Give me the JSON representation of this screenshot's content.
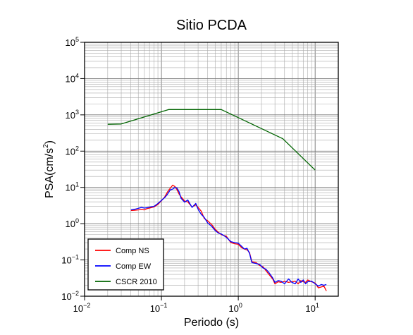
{
  "chart_data": {
    "type": "line",
    "title": "Sitio PCDA",
    "xlabel": "Periodo (s)",
    "ylabel": "PSA(cm/s",
    "ylabel_sup": "2",
    "ylabel_close": ")",
    "x_scale": "log",
    "y_scale": "log",
    "xlim": [
      0.01,
      20
    ],
    "ylim": [
      0.01,
      100000
    ],
    "grid": true,
    "legend_position": "bottom-left",
    "x_ticks": [
      {
        "base": "10",
        "exp": "−2"
      },
      {
        "base": "10",
        "exp": "−1"
      },
      {
        "base": "10",
        "exp": "0"
      },
      {
        "base": "10",
        "exp": "1"
      }
    ],
    "y_ticks": [
      {
        "base": "10",
        "exp": "−2"
      },
      {
        "base": "10",
        "exp": "−1"
      },
      {
        "base": "10",
        "exp": "0"
      },
      {
        "base": "10",
        "exp": "1"
      },
      {
        "base": "10",
        "exp": "2"
      },
      {
        "base": "10",
        "exp": "3"
      },
      {
        "base": "10",
        "exp": "4"
      },
      {
        "base": "10",
        "exp": "5"
      }
    ],
    "series": [
      {
        "name": "Comp NS",
        "color": "#ff0000",
        "x": [
          0.04,
          0.045,
          0.05,
          0.055,
          0.06,
          0.065,
          0.07,
          0.075,
          0.08,
          0.09,
          0.1,
          0.11,
          0.12,
          0.13,
          0.14,
          0.15,
          0.16,
          0.17,
          0.18,
          0.2,
          0.22,
          0.25,
          0.28,
          0.3,
          0.33,
          0.36,
          0.4,
          0.45,
          0.5,
          0.55,
          0.6,
          0.7,
          0.8,
          0.9,
          1.0,
          1.1,
          1.2,
          1.3,
          1.4,
          1.5,
          1.7,
          1.9,
          2.1,
          2.3,
          2.5,
          2.8,
          3.0,
          3.3,
          3.6,
          4.0,
          4.5,
          5.0,
          5.5,
          6.0,
          6.5,
          7.0,
          7.5,
          8.0,
          9.0,
          10.0,
          11.0,
          12.0,
          13.0,
          14.0
        ],
        "y": [
          2.3,
          2.35,
          2.4,
          2.45,
          2.4,
          2.6,
          2.7,
          2.8,
          2.9,
          3.4,
          4.3,
          5.4,
          7.5,
          9.5,
          11.5,
          10.5,
          8.5,
          6.5,
          5.5,
          4.2,
          4.0,
          2.9,
          3.3,
          2.8,
          2.2,
          1.4,
          1.2,
          0.95,
          0.7,
          0.58,
          0.5,
          0.45,
          0.3,
          0.28,
          0.27,
          0.22,
          0.2,
          0.19,
          0.16,
          0.09,
          0.085,
          0.07,
          0.065,
          0.05,
          0.04,
          0.03,
          0.022,
          0.025,
          0.024,
          0.026,
          0.024,
          0.025,
          0.026,
          0.022,
          0.027,
          0.025,
          0.024,
          0.028,
          0.025,
          0.023,
          0.017,
          0.018,
          0.019,
          0.014
        ]
      },
      {
        "name": "Comp EW",
        "color": "#0000ff",
        "x": [
          0.04,
          0.045,
          0.05,
          0.055,
          0.06,
          0.065,
          0.07,
          0.075,
          0.08,
          0.09,
          0.1,
          0.11,
          0.12,
          0.13,
          0.14,
          0.15,
          0.16,
          0.17,
          0.18,
          0.2,
          0.22,
          0.25,
          0.28,
          0.3,
          0.33,
          0.36,
          0.4,
          0.45,
          0.5,
          0.55,
          0.6,
          0.7,
          0.8,
          0.9,
          1.0,
          1.1,
          1.2,
          1.3,
          1.4,
          1.5,
          1.7,
          1.9,
          2.1,
          2.3,
          2.5,
          2.8,
          3.0,
          3.3,
          3.6,
          4.0,
          4.5,
          5.0,
          5.5,
          6.0,
          6.5,
          7.0,
          7.5,
          8.0,
          9.0,
          10.0,
          11.0,
          12.0,
          13.0,
          14.0
        ],
        "y": [
          2.4,
          2.5,
          2.65,
          2.8,
          2.7,
          2.75,
          2.85,
          2.95,
          3.0,
          3.6,
          4.4,
          5.2,
          6.5,
          8.5,
          9.0,
          10.0,
          9.5,
          7.5,
          5.0,
          3.9,
          4.5,
          2.8,
          3.6,
          2.5,
          1.8,
          1.5,
          1.05,
          0.85,
          0.65,
          0.55,
          0.52,
          0.42,
          0.32,
          0.3,
          0.29,
          0.24,
          0.2,
          0.21,
          0.15,
          0.085,
          0.08,
          0.075,
          0.06,
          0.055,
          0.045,
          0.032,
          0.024,
          0.027,
          0.026,
          0.022,
          0.03,
          0.024,
          0.022,
          0.03,
          0.024,
          0.028,
          0.022,
          0.025,
          0.026,
          0.022,
          0.019,
          0.021,
          0.02,
          0.021
        ]
      },
      {
        "name": "CSCR 2010",
        "color": "#006400",
        "x": [
          0.02,
          0.03,
          0.125,
          0.6,
          3.8,
          10.0
        ],
        "y": [
          550,
          560,
          1400,
          1400,
          220,
          30
        ]
      }
    ]
  }
}
